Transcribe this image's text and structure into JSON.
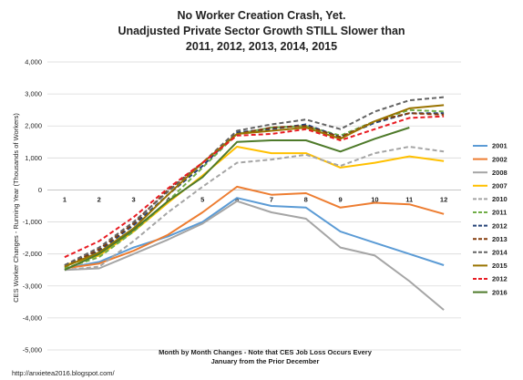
{
  "chart_data": {
    "type": "line",
    "title_lines": [
      "No Worker Creation Crash, Yet.",
      "Unadjusted Private Sector Growth STILL Slower than",
      "2011, 2012, 2013, 2014, 2015"
    ],
    "ylabel": "CES Worker Changes - Running Year (Thousands of Workers)",
    "xlabel_lines": [
      "Month by Month Changes - Note that CES Job Loss Occurs Every",
      "January from the Prior December"
    ],
    "source": "http://anxietea2016.blogspot.com/",
    "ylim": [
      -5000,
      4000
    ],
    "yticks": [
      -5000,
      -4000,
      -3000,
      -2000,
      -1000,
      0,
      1000,
      2000,
      3000,
      4000
    ],
    "ytick_labels": [
      "-5,000",
      "-4,000",
      "-3,000",
      "-2,000",
      "-1,000",
      "0",
      "1,000",
      "2,000",
      "3,000",
      "4,000"
    ],
    "categories": [
      "1",
      "2",
      "3",
      "4",
      "5",
      "6",
      "7",
      "8",
      "9",
      "10",
      "11",
      "12"
    ],
    "grid": true,
    "legend_position": "right",
    "series": [
      {
        "name": "2001",
        "color": "#5b9bd5",
        "dash": "solid",
        "values": [
          -2450,
          -2250,
          -1800,
          -1450,
          -1000,
          -250,
          -500,
          -550,
          -1300,
          -1650,
          -2000,
          -2350
        ]
      },
      {
        "name": "2002",
        "color": "#ed7d31",
        "dash": "solid",
        "values": [
          -2450,
          -2300,
          -1900,
          -1400,
          -700,
          100,
          -150,
          -100,
          -550,
          -400,
          -450,
          -750
        ]
      },
      {
        "name": "2008",
        "color": "#a5a5a5",
        "dash": "solid",
        "values": [
          -2500,
          -2450,
          -2000,
          -1550,
          -1050,
          -350,
          -700,
          -900,
          -1800,
          -2050,
          -2850,
          -3750
        ]
      },
      {
        "name": "2007",
        "color": "#ffc000",
        "dash": "solid",
        "values": [
          -2350,
          -2050,
          -1300,
          -400,
          450,
          1350,
          1150,
          1150,
          700,
          850,
          1050,
          900
        ]
      },
      {
        "name": "2010",
        "color": "#a5a5a5",
        "dash": "dash",
        "values": [
          -2500,
          -2400,
          -1600,
          -700,
          100,
          850,
          950,
          1100,
          750,
          1150,
          1350,
          1200
        ]
      },
      {
        "name": "2011",
        "color": "#70ad47",
        "dash": "dash",
        "values": [
          -2450,
          -2100,
          -1300,
          -350,
          700,
          1750,
          1950,
          2000,
          1700,
          2150,
          2500,
          2450
        ]
      },
      {
        "name": "2012",
        "color": "#264478",
        "dash": "dash",
        "values": [
          -2350,
          -1900,
          -1100,
          -150,
          750,
          1800,
          1900,
          2050,
          1650,
          2100,
          2400,
          2400
        ]
      },
      {
        "name": "2013",
        "color": "#843c0c",
        "dash": "dash",
        "values": [
          -2400,
          -1850,
          -1050,
          0,
          850,
          1750,
          1950,
          2000,
          1650,
          2150,
          2400,
          2350
        ]
      },
      {
        "name": "2014",
        "color": "#636363",
        "dash": "dash",
        "values": [
          -2350,
          -1800,
          -1000,
          -50,
          850,
          1850,
          2050,
          2200,
          1900,
          2450,
          2800,
          2900
        ]
      },
      {
        "name": "2015",
        "color": "#997300",
        "dash": "solid",
        "values": [
          -2400,
          -1950,
          -1200,
          -150,
          850,
          1750,
          1850,
          1950,
          1600,
          2150,
          2550,
          2650
        ]
      },
      {
        "name": "2012",
        "color": "#e81c23",
        "dash": "dash",
        "values": [
          -2100,
          -1600,
          -850,
          50,
          850,
          1700,
          1750,
          1900,
          1550,
          1900,
          2250,
          2300
        ]
      },
      {
        "name": "2016",
        "color": "#4e7a2a",
        "dash": "solid",
        "values": [
          -2500,
          -2000,
          -1250,
          -350,
          400,
          1500,
          1550,
          1550,
          1200,
          1600,
          1950,
          null
        ]
      }
    ]
  }
}
